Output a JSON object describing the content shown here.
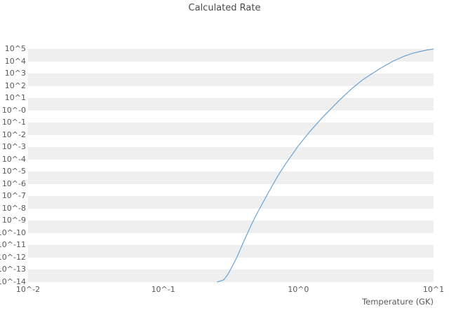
{
  "chart": {
    "title": "Calculated Rate",
    "xlabel": "Temperature (GK)"
  },
  "chart_data": {
    "type": "line",
    "title": "Calculated Rate",
    "xlabel": "Temperature (GK)",
    "ylabel": "",
    "x_scale": "log",
    "y_scale": "log",
    "xlim": [
      0.01,
      10
    ],
    "ylim": [
      1e-14,
      100000.0
    ],
    "grid": "horizontal-bands",
    "legend": "none",
    "band_color": "#efefef",
    "line_color": "#6ba3d6",
    "x_tick_labels": [
      "10^-2",
      "10^-1",
      "10^0",
      "10^1"
    ],
    "x_tick_values": [
      0.01,
      0.1,
      1,
      10
    ],
    "y_tick_labels": [
      "10^5",
      "10^4",
      "10^3",
      "10^2",
      "10^1",
      "10^-0",
      "10^-1",
      "10^-2",
      "10^-3",
      "10^-4",
      "10^-5",
      "10^-6",
      "10^-7",
      "10^-8",
      "10^-9",
      "10^-10",
      "10^-11",
      "10^-12",
      "10^-13",
      "10^-14"
    ],
    "y_tick_values": [
      100000.0,
      10000.0,
      1000.0,
      100.0,
      10.0,
      1.0,
      0.1,
      0.01,
      0.001,
      0.0001,
      1e-05,
      1e-06,
      1e-07,
      1e-08,
      1e-09,
      1e-10,
      1e-11,
      1e-12,
      1e-13,
      1e-14
    ],
    "series": [
      {
        "name": "calculated-rate",
        "x": [
          0.25,
          0.28,
          0.3,
          0.32,
          0.35,
          0.4,
          0.45,
          0.5,
          0.6,
          0.7,
          0.8,
          0.9,
          1.0,
          1.2,
          1.5,
          2.0,
          2.5,
          3.0,
          4.0,
          5.0,
          6.0,
          7.0,
          8.0,
          9.0,
          10.0
        ],
        "y": [
          1e-14,
          1.5e-14,
          4e-14,
          1.5e-13,
          1e-12,
          3e-11,
          5e-10,
          5e-09,
          2e-07,
          4e-06,
          4e-05,
          0.00025,
          0.0013,
          0.016,
          0.25,
          6.3,
          63,
          320,
          2500,
          10000.0,
          25000.0,
          45000.0,
          63000.0,
          83000.0,
          100000.0
        ]
      }
    ]
  }
}
